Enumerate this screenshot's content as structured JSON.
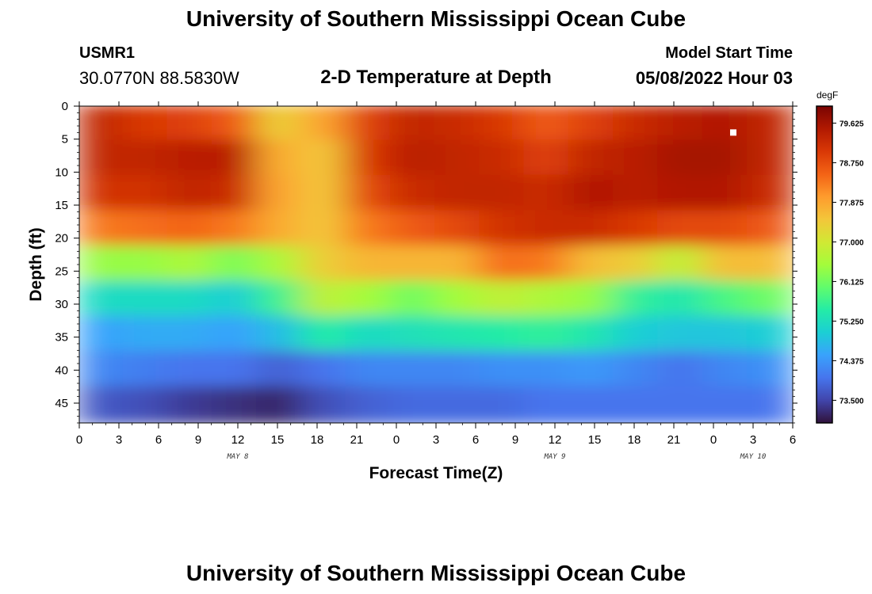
{
  "header": {
    "title": "University of Southern Mississippi Ocean Cube",
    "station_id": "USMR1",
    "coords": "30.0770N  88.5830W",
    "model_label": "Model Start Time",
    "model_time": "05/08/2022 Hour 03",
    "subtitle": "2-D Temperature at Depth"
  },
  "footer": {
    "title": "University of Southern Mississippi Ocean Cube"
  },
  "chart_data": {
    "type": "heatmap",
    "xlabel": "Forecast Time(Z)",
    "ylabel": "Depth (ft)",
    "colorbar_unit": "degF",
    "x_tick_labels": [
      "0",
      "3",
      "6",
      "9",
      "12",
      "15",
      "18",
      "21",
      "0",
      "3",
      "6",
      "9",
      "12",
      "15",
      "18",
      "21",
      "0",
      "3",
      "6"
    ],
    "day_labels": [
      {
        "text": "MAY 8",
        "hour_index": 12
      },
      {
        "text": "MAY 9",
        "hour_index": 36
      },
      {
        "text": "MAY 10",
        "hour_index": 51
      }
    ],
    "y_ticks": [
      0,
      5,
      10,
      15,
      20,
      25,
      30,
      35,
      40,
      45
    ],
    "ylim": [
      0,
      48
    ],
    "xlim_hours": [
      0,
      54
    ],
    "colorbar_ticks": [
      "79.625",
      "78.750",
      "77.875",
      "77.000",
      "76.125",
      "75.250",
      "74.375",
      "73.500"
    ],
    "colorbar_range": [
      73.0,
      80.0
    ],
    "colormap": [
      "#30123b",
      "#4145ab",
      "#4675ed",
      "#39a2fc",
      "#1bcfd4",
      "#24eca6",
      "#61fc6c",
      "#a4fc3b",
      "#d1e834",
      "#f3c63a",
      "#fe9b2d",
      "#f36315",
      "#d93806",
      "#b11901",
      "#7a0403"
    ],
    "marker": {
      "hour": 49.5,
      "depth": 4,
      "color": "#ffffff"
    },
    "values_degF": [
      [
        79.3,
        79.0,
        78.9,
        78.6,
        77.4,
        77.9,
        78.9,
        79.3,
        79.2,
        79.0,
        78.6,
        78.9,
        79.2,
        79.4,
        79.5,
        79.3
      ],
      [
        79.3,
        79.3,
        79.4,
        79.4,
        77.8,
        77.5,
        79.0,
        79.4,
        79.3,
        79.2,
        78.9,
        79.3,
        79.4,
        79.6,
        79.6,
        79.3
      ],
      [
        79.1,
        79.1,
        79.3,
        79.2,
        77.9,
        77.5,
        78.8,
        79.2,
        79.3,
        79.3,
        79.2,
        79.5,
        79.4,
        79.5,
        79.5,
        79.2
      ],
      [
        78.3,
        78.4,
        78.5,
        78.3,
        77.8,
        77.5,
        78.3,
        78.6,
        78.8,
        79.1,
        79.2,
        79.2,
        79.0,
        78.8,
        78.8,
        78.6
      ],
      [
        76.4,
        76.4,
        76.6,
        76.2,
        76.6,
        77.4,
        77.7,
        77.7,
        77.7,
        78.4,
        78.3,
        77.6,
        77.4,
        76.8,
        77.6,
        77.6
      ],
      [
        75.2,
        75.2,
        75.2,
        75.0,
        75.7,
        76.8,
        76.5,
        76.1,
        76.5,
        76.8,
        76.6,
        76.4,
        75.6,
        75.4,
        75.8,
        76.1
      ],
      [
        74.5,
        74.6,
        74.6,
        74.5,
        74.8,
        75.5,
        75.2,
        75.3,
        75.4,
        75.5,
        75.6,
        75.4,
        75.0,
        74.9,
        74.9,
        75.0
      ],
      [
        74.2,
        74.1,
        74.0,
        74.0,
        73.8,
        74.0,
        74.2,
        74.2,
        74.2,
        74.3,
        74.3,
        74.4,
        74.2,
        74.0,
        74.2,
        74.3
      ],
      [
        73.7,
        73.6,
        73.4,
        73.3,
        73.2,
        73.6,
        73.8,
        73.9,
        73.9,
        73.9,
        74.0,
        74.0,
        74.0,
        74.0,
        74.0,
        74.0
      ]
    ]
  }
}
